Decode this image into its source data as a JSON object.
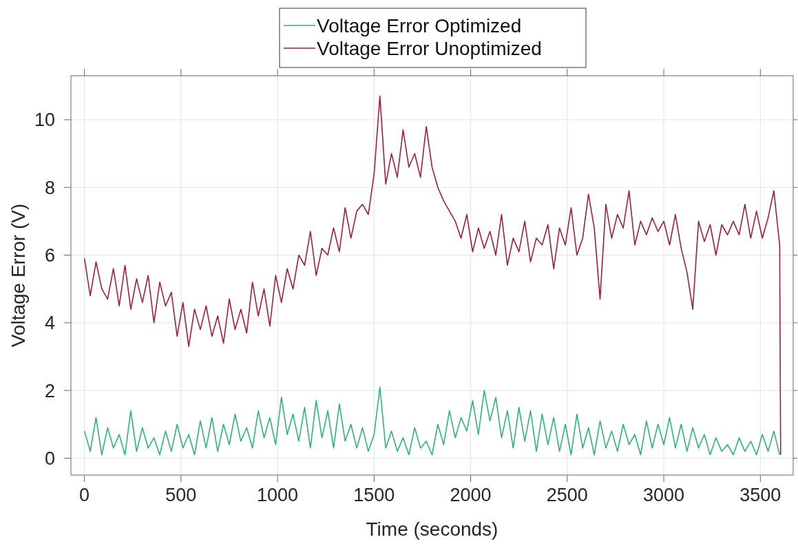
{
  "chart_data": {
    "type": "line",
    "xlabel": "Time (seconds)",
    "ylabel": "Voltage Error (V)",
    "x": [
      0,
      30,
      60,
      90,
      120,
      150,
      180,
      210,
      240,
      270,
      300,
      330,
      360,
      390,
      420,
      450,
      480,
      510,
      540,
      570,
      600,
      630,
      660,
      690,
      720,
      750,
      780,
      810,
      840,
      870,
      900,
      930,
      960,
      990,
      1020,
      1050,
      1080,
      1110,
      1140,
      1170,
      1200,
      1230,
      1260,
      1290,
      1320,
      1350,
      1380,
      1410,
      1440,
      1470,
      1500,
      1530,
      1560,
      1590,
      1620,
      1650,
      1680,
      1710,
      1740,
      1770,
      1800,
      1830,
      1860,
      1890,
      1920,
      1950,
      1980,
      2010,
      2040,
      2070,
      2100,
      2130,
      2160,
      2190,
      2220,
      2250,
      2280,
      2310,
      2340,
      2370,
      2400,
      2430,
      2460,
      2490,
      2520,
      2550,
      2580,
      2610,
      2640,
      2670,
      2700,
      2730,
      2760,
      2790,
      2820,
      2850,
      2880,
      2910,
      2940,
      2970,
      3000,
      3030,
      3060,
      3090,
      3120,
      3150,
      3180,
      3210,
      3240,
      3270,
      3300,
      3330,
      3360,
      3390,
      3420,
      3450,
      3480,
      3510,
      3540,
      3570,
      3600,
      3605
    ],
    "series": [
      {
        "name": "Voltage Error Optimized",
        "color": "#2bb57a",
        "values": [
          0.8,
          0.2,
          1.2,
          0.1,
          0.9,
          0.3,
          0.7,
          0.1,
          1.4,
          0.2,
          0.9,
          0.3,
          0.6,
          0.1,
          0.8,
          0.2,
          1.0,
          0.3,
          0.7,
          0.1,
          1.1,
          0.3,
          1.2,
          0.2,
          1.0,
          0.4,
          1.3,
          0.5,
          0.9,
          0.3,
          1.4,
          0.6,
          1.2,
          0.4,
          1.8,
          0.7,
          1.3,
          0.5,
          1.5,
          0.3,
          1.7,
          0.6,
          1.4,
          0.3,
          1.6,
          0.5,
          1.0,
          0.3,
          0.9,
          0.2,
          0.7,
          2.1,
          0.3,
          0.8,
          0.2,
          0.6,
          0.1,
          0.9,
          0.3,
          0.5,
          0.1,
          1.0,
          0.4,
          1.4,
          0.6,
          1.2,
          0.8,
          1.7,
          0.7,
          2.0,
          1.1,
          1.8,
          0.6,
          1.4,
          0.3,
          1.5,
          0.5,
          1.4,
          0.2,
          1.3,
          0.4,
          1.2,
          0.2,
          1.0,
          0.1,
          1.3,
          0.3,
          0.9,
          0.1,
          1.1,
          0.3,
          0.8,
          0.2,
          1.0,
          0.4,
          0.7,
          0.1,
          1.1,
          0.3,
          1.0,
          0.4,
          1.2,
          0.3,
          1.0,
          0.2,
          0.9,
          0.3,
          0.7,
          0.1,
          0.6,
          0.2,
          0.4,
          0.1,
          0.6,
          0.2,
          0.5,
          0.1,
          0.7,
          0.2,
          0.8,
          0.1,
          null
        ]
      },
      {
        "name": "Voltage Error Unoptimized",
        "color": "#a51c3a",
        "values": [
          5.9,
          4.8,
          5.8,
          5.0,
          4.7,
          5.6,
          4.5,
          5.7,
          4.4,
          5.3,
          4.6,
          5.4,
          4.0,
          5.2,
          4.5,
          4.9,
          3.6,
          4.6,
          3.3,
          4.4,
          3.8,
          4.5,
          3.6,
          4.2,
          3.4,
          4.7,
          3.8,
          4.4,
          3.7,
          5.2,
          4.2,
          5.0,
          3.9,
          5.4,
          4.6,
          5.6,
          5.0,
          6.0,
          5.7,
          6.7,
          5.4,
          6.2,
          6.0,
          6.8,
          6.1,
          7.4,
          6.5,
          7.3,
          7.5,
          7.2,
          8.4,
          10.7,
          8.1,
          9.0,
          8.3,
          9.7,
          8.6,
          9.0,
          8.3,
          9.8,
          8.6,
          8.0,
          7.6,
          7.3,
          7.0,
          6.5,
          7.2,
          6.1,
          6.8,
          6.2,
          6.7,
          6.0,
          7.2,
          5.7,
          6.5,
          6.1,
          7.0,
          5.8,
          6.5,
          6.3,
          6.9,
          5.6,
          6.8,
          6.3,
          7.4,
          6.0,
          6.5,
          7.8,
          6.8,
          4.7,
          7.5,
          6.5,
          7.2,
          6.8,
          7.9,
          6.3,
          7.0,
          6.6,
          7.1,
          6.7,
          7.0,
          6.3,
          7.2,
          6.2,
          5.5,
          4.4,
          7.0,
          6.4,
          6.9,
          6.0,
          6.9,
          6.6,
          7.0,
          6.6,
          7.5,
          6.5,
          7.3,
          6.5,
          7.1,
          7.9,
          6.3,
          0.1
        ]
      }
    ],
    "xlim": [
      -70,
      3670
    ],
    "xticks": [
      0,
      500,
      1000,
      1500,
      2000,
      2500,
      3000,
      3500
    ],
    "ylim": [
      -0.5,
      11.3
    ],
    "yticks": [
      0,
      2,
      4,
      6,
      8,
      10
    ],
    "grid": true,
    "legend": "top",
    "line_style": "solid",
    "marker": "none"
  }
}
